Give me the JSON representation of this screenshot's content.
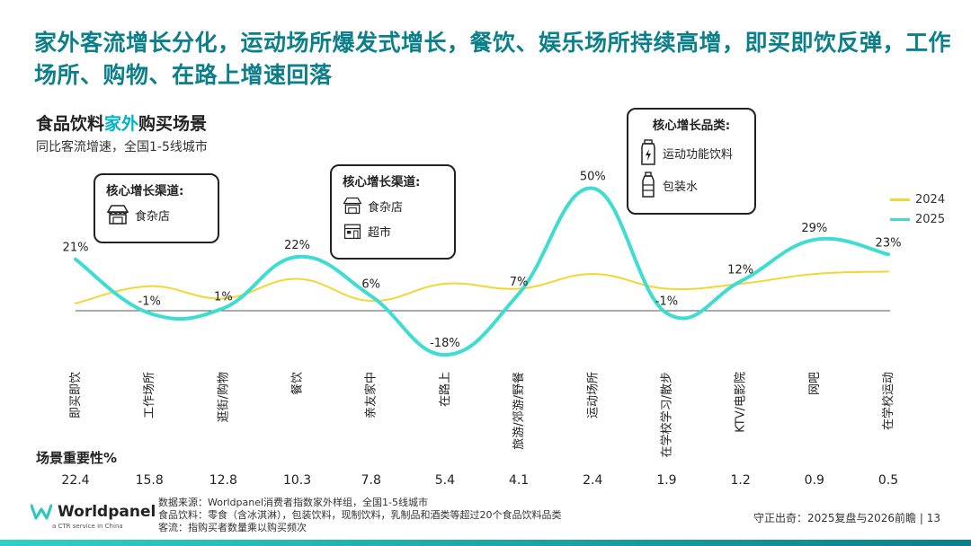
{
  "title": "家外客流增长分化，运动场所爆发式增长，餐饮、娱乐场所持续高增，即买即饮反弹，工作场所、购物、在路上增速回落",
  "subtitle": {
    "part1": "食品饮料",
    "highlight": "家外",
    "part2": "购买场景"
  },
  "description": "同比客流增速，全国1-5线城市",
  "callouts": {
    "left": {
      "title": "核心增长渠道:",
      "items": [
        {
          "icon": "grocery-store-icon",
          "label": "食杂店"
        }
      ]
    },
    "middle": {
      "title": "核心增长渠道:",
      "items": [
        {
          "icon": "grocery-store-icon",
          "label": "食杂店"
        },
        {
          "icon": "supermarket-icon",
          "label": "超市"
        }
      ]
    },
    "right": {
      "title": "核心增长品类:",
      "items": [
        {
          "icon": "sports-drink-icon",
          "label": "运动功能饮料"
        },
        {
          "icon": "water-bottle-icon",
          "label": "包装水"
        }
      ]
    }
  },
  "chart_data": {
    "type": "line",
    "title": "食品饮料家外购买场景",
    "ylabel": "同比客流增速",
    "categories": [
      "即买即饮",
      "工作场所",
      "逛街/购物",
      "餐饮",
      "亲友家中",
      "在路上",
      "旅游/郊游/野餐",
      "运动场所",
      "在学校学习/散步",
      "KTV/电影院",
      "网吧",
      "在学校运动"
    ],
    "series": [
      {
        "name": "2024",
        "color": "#f2d633",
        "values": [
          3,
          10,
          5,
          13,
          4,
          11,
          9,
          15,
          9,
          11,
          15,
          16
        ]
      },
      {
        "name": "2025",
        "color": "#3fdcd2",
        "values": [
          21,
          -1,
          1,
          22,
          6,
          -18,
          7,
          50,
          -1,
          12,
          29,
          23
        ]
      }
    ],
    "data_labels": [
      "21%",
      "-1%",
      "1%",
      "22%",
      "6%",
      "-18%",
      "7%",
      "50%",
      "-1%",
      "12%",
      "29%",
      "23%"
    ],
    "ylim": [
      -22,
      55
    ],
    "importance_label": "场景重要性%",
    "importance": [
      "22.4",
      "15.8",
      "12.8",
      "10.3",
      "7.8",
      "5.4",
      "4.1",
      "2.4",
      "1.9",
      "1.2",
      "0.9",
      "0.5"
    ]
  },
  "footer": {
    "source": "数据来源：Worldpanel消费者指数家外样组，全国1-5线城市",
    "definition": "食品饮料：零食（含冰淇淋），包装饮料，现制饮料，乳制品和酒类等超过20个食品饮料品类",
    "traffic": "客流：指购买者数量乘以购买频次"
  },
  "brand": {
    "name": "Worldpanel",
    "tagline": "a CTR service in China"
  },
  "page_info": "守正出奇：2025复盘与2026前瞻 | 13"
}
